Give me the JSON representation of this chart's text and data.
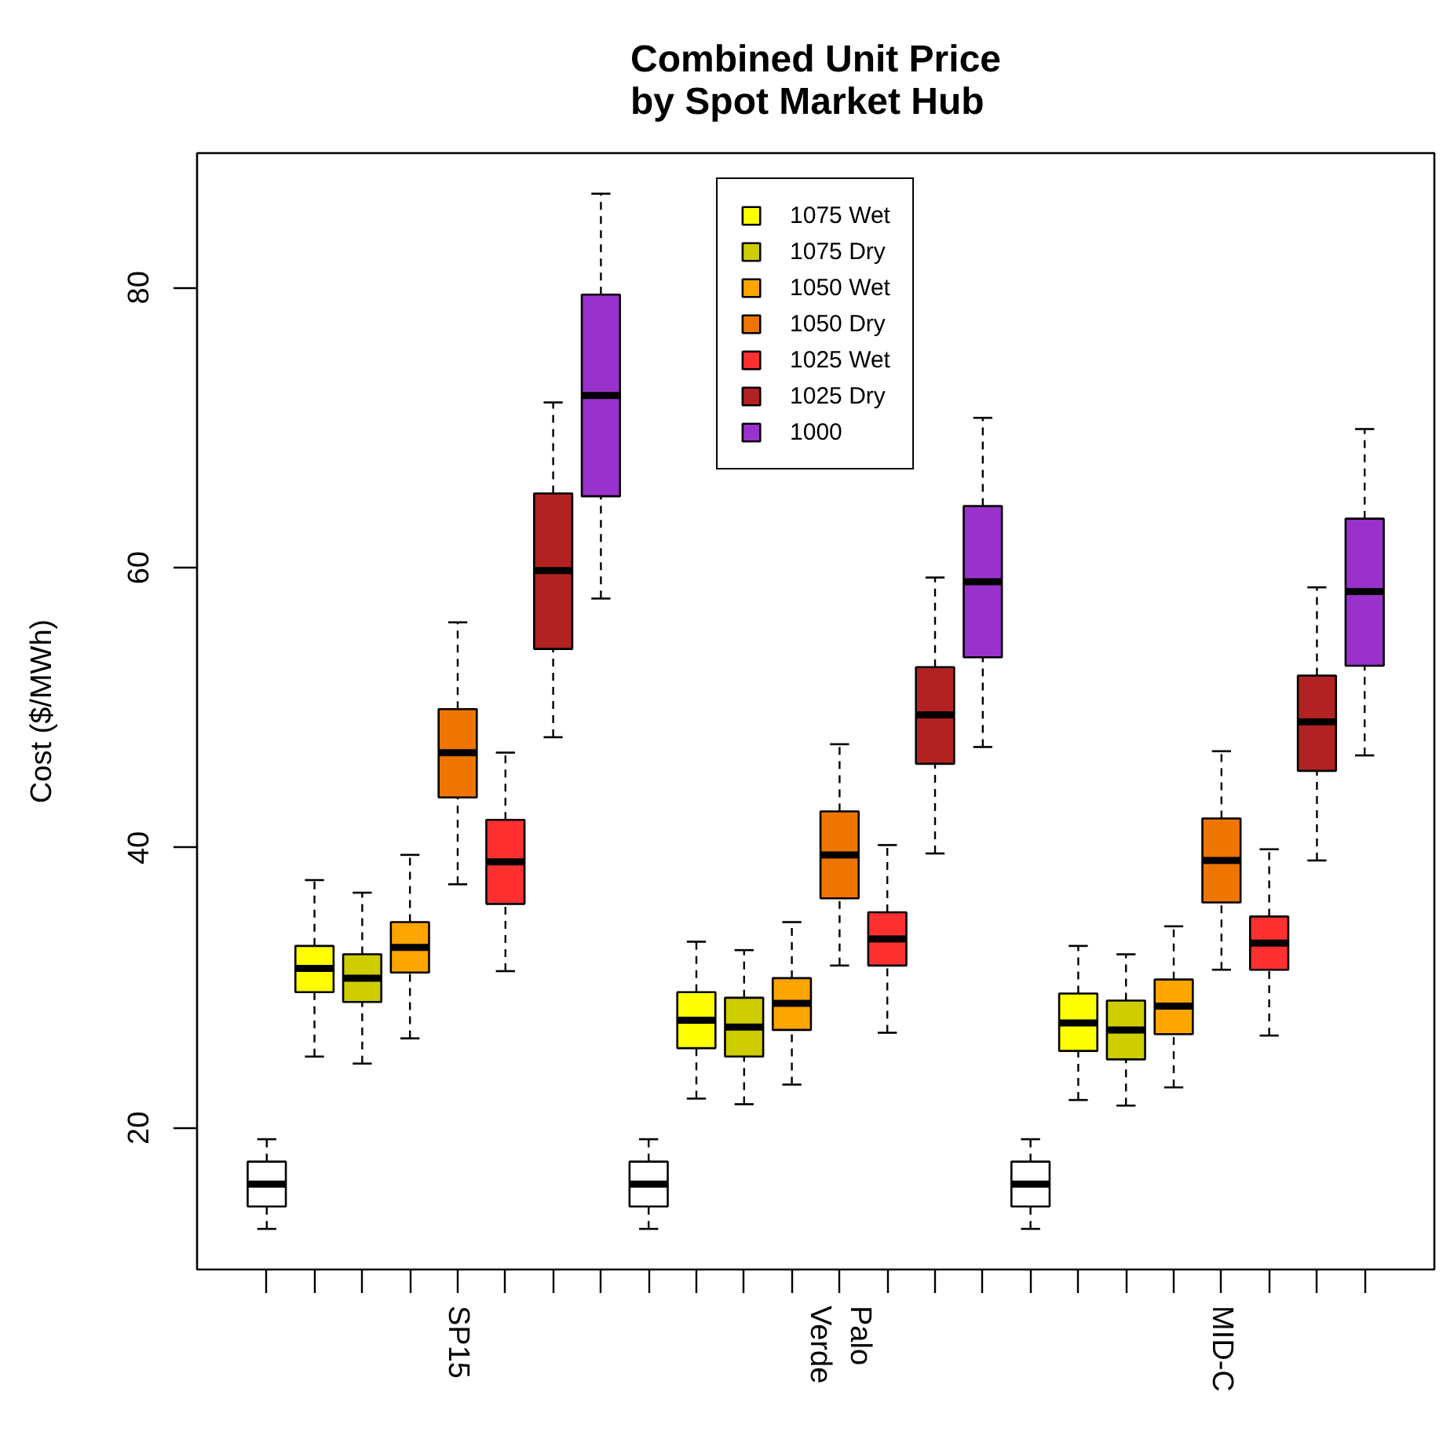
{
  "chart_data": {
    "type": "box",
    "title": "Combined Unit Price\nby Spot Market Hub",
    "ylabel": "Cost ($/MWh)",
    "categories": [
      null,
      null,
      null,
      null,
      "SP15",
      null,
      null,
      null,
      null,
      null,
      null,
      null,
      "Palo\nVerde",
      null,
      null,
      null,
      null,
      null,
      null,
      null,
      "MID-C",
      null,
      null,
      null
    ],
    "ylim": [
      9.9,
      89.6
    ],
    "yticks": [
      20,
      40,
      60,
      80
    ],
    "grid": false,
    "legend": "top",
    "series": [
      {
        "color": "#ffffff",
        "boxes": [
          {
            "low": 12.8,
            "q1": 14.4,
            "median": 16.0,
            "q3": 17.6,
            "high": 19.2
          },
          null,
          null,
          null,
          null,
          null,
          null,
          null,
          {
            "low": 12.8,
            "q1": 14.4,
            "median": 16.0,
            "q3": 17.6,
            "high": 19.2
          },
          null,
          null,
          null,
          null,
          null,
          null,
          null,
          {
            "low": 12.8,
            "q1": 14.4,
            "median": 16.0,
            "q3": 17.6,
            "high": 19.2
          },
          null,
          null,
          null,
          null,
          null,
          null,
          null
        ]
      },
      {
        "name": "1075 Wet",
        "color": "#ffff00",
        "boxes": [
          null,
          {
            "low": 25.1,
            "q1": 29.7,
            "median": 31.4,
            "q3": 33.0,
            "high": 37.7
          },
          null,
          null,
          null,
          null,
          null,
          null,
          null,
          {
            "low": 22.1,
            "q1": 25.7,
            "median": 27.7,
            "q3": 29.7,
            "high": 33.3
          },
          null,
          null,
          null,
          null,
          null,
          null,
          null,
          {
            "low": 22.0,
            "q1": 25.5,
            "median": 27.5,
            "q3": 29.6,
            "high": 33.0
          },
          null,
          null,
          null,
          null,
          null,
          null
        ]
      },
      {
        "name": "1075 Dry",
        "color": "#cdcd00",
        "boxes": [
          null,
          null,
          {
            "low": 24.6,
            "q1": 29.0,
            "median": 30.7,
            "q3": 32.4,
            "high": 36.8
          },
          null,
          null,
          null,
          null,
          null,
          null,
          null,
          {
            "low": 21.7,
            "q1": 25.1,
            "median": 27.2,
            "q3": 29.3,
            "high": 32.7
          },
          null,
          null,
          null,
          null,
          null,
          null,
          null,
          {
            "low": 21.6,
            "q1": 24.9,
            "median": 27.0,
            "q3": 29.1,
            "high": 32.4
          },
          null,
          null,
          null,
          null,
          null
        ]
      },
      {
        "name": "1050 Wet",
        "color": "#ffa500",
        "boxes": [
          null,
          null,
          null,
          {
            "low": 26.4,
            "q1": 31.1,
            "median": 32.9,
            "q3": 34.7,
            "high": 39.5
          },
          null,
          null,
          null,
          null,
          null,
          null,
          null,
          {
            "low": 23.1,
            "q1": 27.0,
            "median": 28.9,
            "q3": 30.7,
            "high": 34.7
          },
          null,
          null,
          null,
          null,
          null,
          null,
          null,
          {
            "low": 22.9,
            "q1": 26.7,
            "median": 28.7,
            "q3": 30.6,
            "high": 34.4
          },
          null,
          null,
          null,
          null
        ]
      },
      {
        "name": "1050 Dry",
        "color": "#ee7600",
        "boxes": [
          null,
          null,
          null,
          null,
          {
            "low": 37.4,
            "q1": 43.6,
            "median": 46.8,
            "q3": 49.9,
            "high": 56.1
          },
          null,
          null,
          null,
          null,
          null,
          null,
          null,
          {
            "low": 31.6,
            "q1": 36.4,
            "median": 39.5,
            "q3": 42.6,
            "high": 47.4
          },
          null,
          null,
          null,
          null,
          null,
          null,
          null,
          {
            "low": 31.3,
            "q1": 36.1,
            "median": 39.1,
            "q3": 42.1,
            "high": 46.9
          },
          null,
          null,
          null
        ]
      },
      {
        "name": "1025 Wet",
        "color": "#ff3030",
        "boxes": [
          null,
          null,
          null,
          null,
          null,
          {
            "low": 31.2,
            "q1": 36.0,
            "median": 39.0,
            "q3": 42.0,
            "high": 46.8
          },
          null,
          null,
          null,
          null,
          null,
          null,
          null,
          {
            "low": 26.8,
            "q1": 31.6,
            "median": 33.5,
            "q3": 35.4,
            "high": 40.2
          },
          null,
          null,
          null,
          null,
          null,
          null,
          null,
          {
            "low": 26.6,
            "q1": 31.3,
            "median": 33.2,
            "q3": 35.1,
            "high": 39.9
          },
          null,
          null
        ]
      },
      {
        "name": "1025 Dry",
        "color": "#b22222",
        "boxes": [
          null,
          null,
          null,
          null,
          null,
          null,
          {
            "low": 47.9,
            "q1": 54.2,
            "median": 59.8,
            "q3": 65.3,
            "high": 71.8
          },
          null,
          null,
          null,
          null,
          null,
          null,
          null,
          {
            "low": 39.6,
            "q1": 46.0,
            "median": 49.5,
            "q3": 52.9,
            "high": 59.3
          },
          null,
          null,
          null,
          null,
          null,
          null,
          null,
          {
            "low": 39.1,
            "q1": 45.5,
            "median": 49.0,
            "q3": 52.3,
            "high": 58.6
          },
          null
        ]
      },
      {
        "name": "1000",
        "color": "#9932cc",
        "boxes": [
          null,
          null,
          null,
          null,
          null,
          null,
          null,
          {
            "low": 57.8,
            "q1": 65.1,
            "median": 72.3,
            "q3": 79.5,
            "high": 86.7
          },
          null,
          null,
          null,
          null,
          null,
          null,
          null,
          {
            "low": 47.2,
            "q1": 53.6,
            "median": 59.0,
            "q3": 64.4,
            "high": 70.7
          },
          null,
          null,
          null,
          null,
          null,
          null,
          null,
          {
            "low": 46.6,
            "q1": 53.0,
            "median": 58.3,
            "q3": 63.5,
            "high": 69.9
          }
        ]
      }
    ]
  }
}
